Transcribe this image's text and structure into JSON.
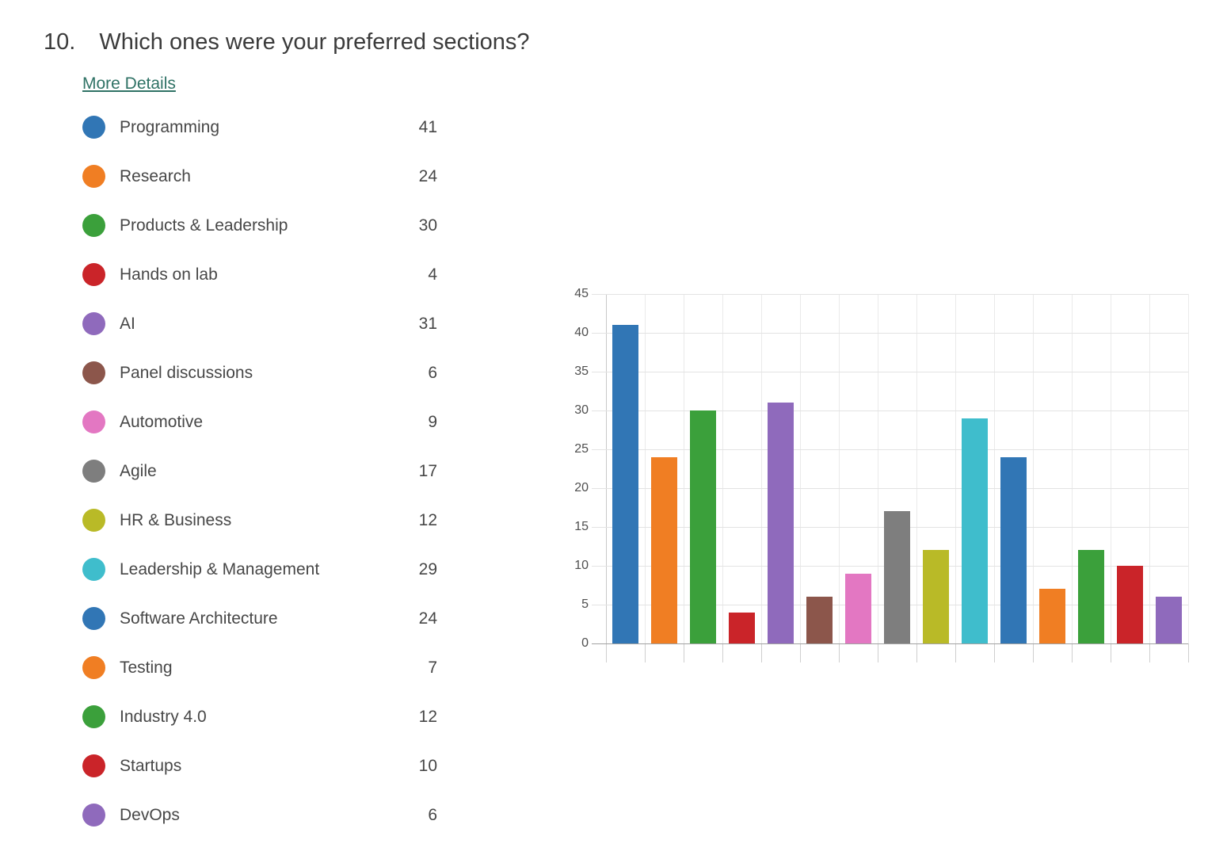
{
  "question": {
    "number": "10.",
    "text": "Which ones were your preferred sections?"
  },
  "more_details_label": "More Details",
  "chart_data": {
    "type": "bar",
    "title": "",
    "xlabel": "",
    "ylabel": "",
    "categories": [
      "Programming",
      "Research",
      "Products & Leadership",
      "Hands on lab",
      "AI",
      "Panel discussions",
      "Automotive",
      "Agile",
      "HR & Business",
      "Leadership & Management",
      "Software Architecture",
      "Testing",
      "Industry 4.0",
      "Startups",
      "DevOps"
    ],
    "values": [
      41,
      24,
      30,
      4,
      31,
      6,
      9,
      17,
      12,
      29,
      24,
      7,
      12,
      10,
      6
    ],
    "colors": [
      "#3176b5",
      "#f07e23",
      "#3ba03b",
      "#ca2429",
      "#8f6abc",
      "#8c564b",
      "#e377c2",
      "#7e7e7e",
      "#b9ba27",
      "#3fbdcc",
      "#3176b5",
      "#f07e23",
      "#3ba03b",
      "#ca2429",
      "#8f6abc"
    ],
    "ylim": [
      0,
      45
    ],
    "ytick_step": 5,
    "grid": true,
    "legend_position": "left-list"
  },
  "colors": {
    "link": "#2f7265",
    "title_text": "#3b3b3b",
    "legend_text": "#474747",
    "axis_text": "#4f4f4f",
    "gridline": "#e3e3e3",
    "axis_line": "#c9c9c9",
    "baseline": "#a2a2a2"
  }
}
